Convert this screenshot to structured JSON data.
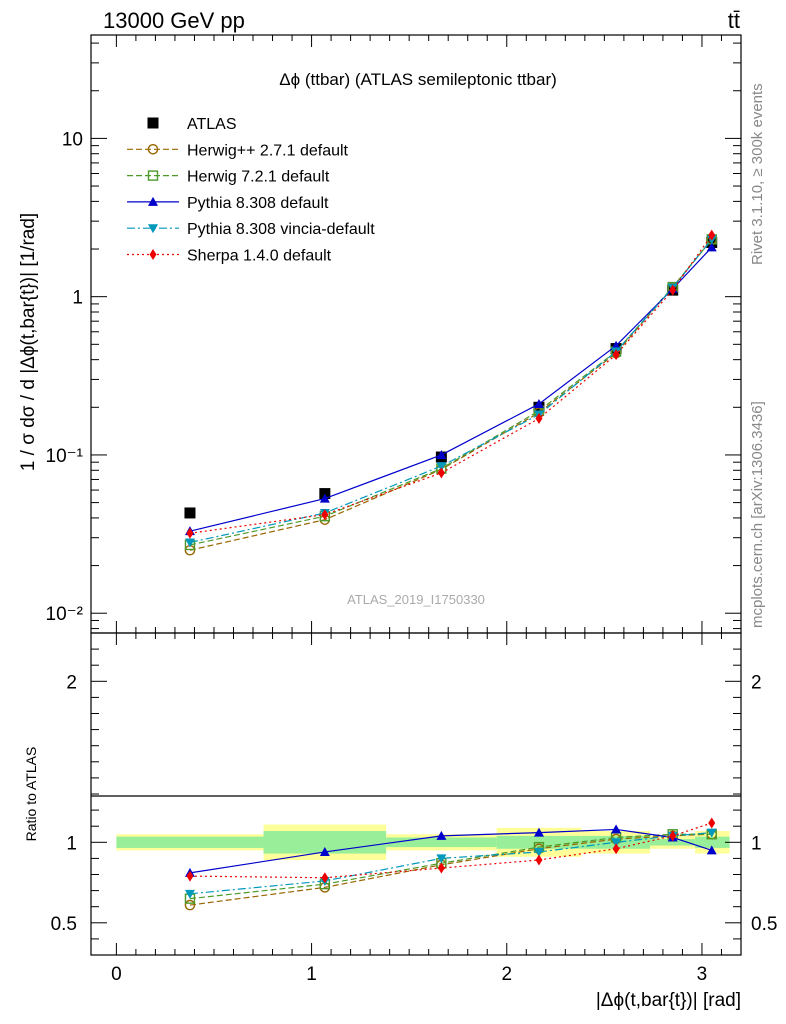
{
  "header": {
    "left_title": "13000 GeV pp",
    "right_title": "tt̄",
    "side_label_top": "Rivet 3.1.10, ≥ 300k events",
    "side_label_bottom": "mcplots.cern.ch [arXiv:1306.3436]"
  },
  "chart_data": {
    "type": "line",
    "title": "Δϕ (ttbar) (ATLAS semileptonic ttbar)",
    "watermark": "ATLAS_2019_I1750330",
    "xlabel": "|Δϕ(t,bar{t})| [rad]",
    "ylabel": "1 / σ dσ / d |Δϕ(t,bar{t})| [1/rad]",
    "ratio_ylabel": "Ratio to ATLAS",
    "xlim": [
      -0.13,
      3.2
    ],
    "ylim": [
      0.0075,
      45
    ],
    "yscale": "log",
    "ratio_ylim": [
      0.3,
      2.3
    ],
    "x_ticks": [
      0,
      1,
      2,
      3
    ],
    "x_tick_labels": [
      "0",
      "1",
      "2",
      "3"
    ],
    "y_ticks": [
      0.01,
      0.1,
      1,
      10
    ],
    "y_tick_labels": [
      "10⁻²",
      "10⁻¹",
      "1",
      "10"
    ],
    "ratio_ticks": [
      0.5,
      1,
      2
    ],
    "ratio_tick_labels": [
      "0.5",
      "1",
      "2"
    ],
    "x": [
      0.377,
      1.068,
      1.665,
      2.165,
      2.56,
      2.85,
      3.05
    ],
    "bin_edges": [
      0,
      0.754,
      1.382,
      1.948,
      2.382,
      2.734,
      2.965,
      3.1416
    ],
    "band_inner": [
      0.035,
      0.07,
      0.03,
      0.04,
      0.04,
      0.02,
      0.035
    ],
    "band_outer": [
      0.05,
      0.11,
      0.05,
      0.09,
      0.07,
      0.04,
      0.07
    ],
    "legend": [
      "ATLAS",
      "Herwig++ 2.7.1 default",
      "Herwig 7.2.1 default",
      "Pythia 8.308 default",
      "Pythia 8.308 vincia-default",
      "Sherpa 1.4.0 default"
    ],
    "series": [
      {
        "name": "ATLAS",
        "marker": "square",
        "color": "#000000",
        "dash": "none",
        "values": [
          0.043,
          0.057,
          0.097,
          0.2,
          0.47,
          1.1,
          2.2
        ],
        "ratio": [
          1,
          1,
          1,
          1,
          1,
          1,
          1
        ]
      },
      {
        "name": "Herwig++ 2.7.1 default",
        "marker": "circle-open",
        "color": "#996600",
        "dash": "6,3",
        "values": [
          0.025,
          0.039,
          0.081,
          0.185,
          0.44,
          1.14,
          2.3
        ],
        "ratio": [
          0.61,
          0.72,
          0.86,
          0.96,
          1.02,
          1.04,
          1.05
        ]
      },
      {
        "name": "Herwig 7.2.1 default",
        "marker": "square-open",
        "color": "#4d9a2a",
        "dash": "6,3",
        "values": [
          0.027,
          0.041,
          0.082,
          0.19,
          0.45,
          1.15,
          2.3
        ],
        "ratio": [
          0.65,
          0.74,
          0.87,
          0.97,
          1.03,
          1.05,
          1.05
        ]
      },
      {
        "name": "Pythia 8.308 default",
        "marker": "triangle-up",
        "color": "#0000cc",
        "dash": "none",
        "values": [
          0.033,
          0.053,
          0.1,
          0.21,
          0.49,
          1.12,
          2.05
        ],
        "ratio": [
          0.81,
          0.94,
          1.04,
          1.06,
          1.08,
          1.03,
          0.95
        ]
      },
      {
        "name": "Pythia 8.308 vincia-default",
        "marker": "triangle-down",
        "color": "#0099bb",
        "dash": "8,3,2,3",
        "values": [
          0.028,
          0.043,
          0.085,
          0.18,
          0.45,
          1.14,
          2.3
        ],
        "ratio": [
          0.68,
          0.76,
          0.9,
          0.94,
          1.0,
          1.04,
          1.06
        ]
      },
      {
        "name": "Sherpa 1.4.0 default",
        "marker": "diamond",
        "color": "#ee0000",
        "dash": "2,3",
        "values": [
          0.032,
          0.042,
          0.077,
          0.17,
          0.43,
          1.1,
          2.45
        ],
        "ratio": [
          0.79,
          0.78,
          0.84,
          0.89,
          0.96,
          1.04,
          1.12
        ]
      }
    ]
  }
}
